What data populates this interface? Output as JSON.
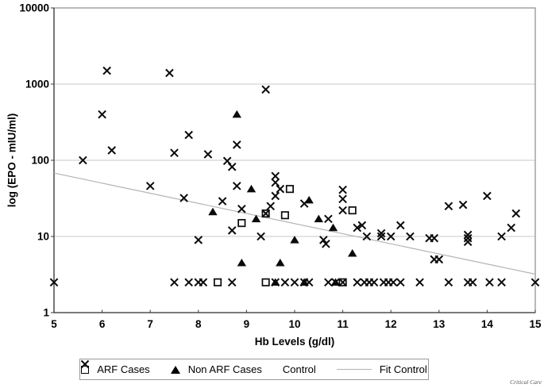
{
  "axes": {
    "y_label": "log (EPO - mIU/ml)",
    "x_label": "Hb Levels (g/dl)"
  },
  "legend": {
    "items": [
      {
        "label": "ARF Cases",
        "marker": "open-square"
      },
      {
        "label": "Non ARF Cases",
        "marker": "filled-triangle"
      },
      {
        "label": "Control",
        "marker": "x-mark"
      },
      {
        "label": "Fit Control",
        "marker": "fit-line"
      }
    ]
  },
  "credit": "Critical Care",
  "colors": {
    "marker": "#0a0a0a",
    "gridline": "#c9c9c9",
    "frame": "#8c8c8c",
    "axis": "#3a3a3a",
    "fit_line": "#b3b3b3"
  },
  "chart_data": {
    "type": "scatter",
    "title": "",
    "xlabel": "Hb Levels (g/dl)",
    "ylabel": "log (EPO - mIU/ml)",
    "x_ticks": [
      5,
      6,
      7,
      8,
      9,
      10,
      11,
      12,
      13,
      14,
      15
    ],
    "y_ticks": [
      1,
      10,
      100,
      1000,
      10000
    ],
    "xlim": [
      5,
      15
    ],
    "ylim": [
      1,
      10000
    ],
    "y_scale": "log",
    "grid": "horizontal",
    "legend_position": "bottom",
    "series": [
      {
        "name": "Fit Control",
        "marker": "fit-line",
        "points": [
          [
            5,
            68
          ],
          [
            15,
            3.2
          ]
        ]
      },
      {
        "name": "ARF Cases",
        "marker": "open-square",
        "points": [
          [
            8.4,
            2.5
          ],
          [
            8.9,
            15
          ],
          [
            9.4,
            20
          ],
          [
            9.4,
            2.5
          ],
          [
            9.8,
            19
          ],
          [
            9.9,
            42
          ],
          [
            11.0,
            2.5
          ],
          [
            11.2,
            22
          ]
        ]
      },
      {
        "name": "Non ARF Cases",
        "marker": "filled-triangle",
        "points": [
          [
            8.3,
            21
          ],
          [
            8.8,
            400
          ],
          [
            8.9,
            4.5
          ],
          [
            9.1,
            42
          ],
          [
            9.2,
            17
          ],
          [
            9.6,
            2.5
          ],
          [
            9.7,
            4.5
          ],
          [
            10.0,
            9
          ],
          [
            10.2,
            2.5
          ],
          [
            10.3,
            30
          ],
          [
            10.5,
            17
          ],
          [
            10.8,
            13
          ],
          [
            10.85,
            2.5
          ],
          [
            11.2,
            6
          ]
        ]
      },
      {
        "name": "Control",
        "marker": "x-mark",
        "points": [
          [
            5.0,
            2.5
          ],
          [
            5.6,
            100
          ],
          [
            6.0,
            400
          ],
          [
            6.1,
            1500
          ],
          [
            6.2,
            135
          ],
          [
            7.0,
            46
          ],
          [
            7.4,
            1400
          ],
          [
            7.5,
            125
          ],
          [
            7.5,
            2.5
          ],
          [
            7.7,
            32
          ],
          [
            7.8,
            215
          ],
          [
            7.8,
            2.5
          ],
          [
            8.0,
            9
          ],
          [
            8.0,
            2.5
          ],
          [
            8.1,
            2.5
          ],
          [
            8.2,
            120
          ],
          [
            8.5,
            29
          ],
          [
            8.6,
            98
          ],
          [
            8.7,
            82
          ],
          [
            8.7,
            12
          ],
          [
            8.7,
            2.5
          ],
          [
            8.8,
            46
          ],
          [
            8.8,
            160
          ],
          [
            8.9,
            23
          ],
          [
            9.3,
            10
          ],
          [
            9.4,
            850
          ],
          [
            9.4,
            20
          ],
          [
            9.5,
            25
          ],
          [
            9.6,
            62
          ],
          [
            9.6,
            51
          ],
          [
            9.6,
            34
          ],
          [
            9.6,
            2.5
          ],
          [
            9.7,
            42
          ],
          [
            9.8,
            2.5
          ],
          [
            10.0,
            2.5
          ],
          [
            10.2,
            27
          ],
          [
            10.2,
            2.5
          ],
          [
            10.3,
            2.5
          ],
          [
            10.6,
            9
          ],
          [
            10.65,
            8
          ],
          [
            10.7,
            17
          ],
          [
            10.7,
            2.5
          ],
          [
            10.85,
            2.5
          ],
          [
            11.0,
            41
          ],
          [
            11.0,
            31
          ],
          [
            11.0,
            22
          ],
          [
            11.0,
            2.5
          ],
          [
            11.3,
            13
          ],
          [
            11.3,
            2.5
          ],
          [
            11.4,
            14
          ],
          [
            11.45,
            2.5
          ],
          [
            11.5,
            10
          ],
          [
            11.55,
            2.5
          ],
          [
            11.65,
            2.5
          ],
          [
            11.8,
            11
          ],
          [
            11.8,
            10
          ],
          [
            11.85,
            2.5
          ],
          [
            11.95,
            2.5
          ],
          [
            12.0,
            10
          ],
          [
            12.05,
            2.5
          ],
          [
            12.2,
            14
          ],
          [
            12.2,
            2.5
          ],
          [
            12.4,
            10
          ],
          [
            12.6,
            2.5
          ],
          [
            12.8,
            9.5
          ],
          [
            12.9,
            9.5
          ],
          [
            12.9,
            5
          ],
          [
            13.0,
            5
          ],
          [
            13.2,
            25
          ],
          [
            13.2,
            2.5
          ],
          [
            13.5,
            26
          ],
          [
            13.6,
            10.5
          ],
          [
            13.6,
            9.5
          ],
          [
            13.6,
            8.5
          ],
          [
            13.6,
            2.5
          ],
          [
            13.7,
            2.5
          ],
          [
            14.0,
            34
          ],
          [
            14.05,
            2.5
          ],
          [
            14.3,
            10
          ],
          [
            14.3,
            2.5
          ],
          [
            14.5,
            13
          ],
          [
            14.6,
            20
          ],
          [
            15.0,
            2.5
          ]
        ]
      }
    ]
  }
}
